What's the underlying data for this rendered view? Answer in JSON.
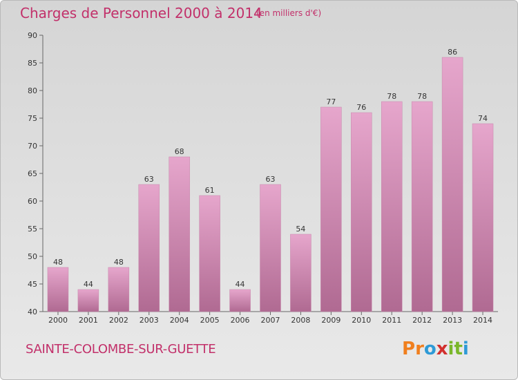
{
  "header": {
    "title": "Charges de Personnel 2000 à 2014",
    "subtitle": "(en milliers d'€)"
  },
  "footer": {
    "commune": "SAINTE-COLOMBE-SUR-GUETTE",
    "logo_letters": [
      "P",
      "r",
      "o",
      "x",
      "i",
      "t",
      "i"
    ],
    "logo_colors": [
      "#f07f1e",
      "#f07f1e",
      "#2e9ad6",
      "#d2302e",
      "#7ab72a",
      "#7ab72a",
      "#2e9ad6"
    ]
  },
  "colors": {
    "title": "#c2306a",
    "bar_top": "#e6a6cc",
    "bar_bottom": "#b06a92",
    "axis": "#666666"
  },
  "chart_data": {
    "type": "bar",
    "categories": [
      "2000",
      "2001",
      "2002",
      "2003",
      "2004",
      "2005",
      "2006",
      "2007",
      "2008",
      "2009",
      "2010",
      "2011",
      "2012",
      "2013",
      "2014"
    ],
    "values": [
      48,
      44,
      48,
      63,
      68,
      61,
      44,
      63,
      54,
      77,
      76,
      78,
      78,
      86,
      74
    ],
    "ylim": [
      40,
      90
    ],
    "yticks": [
      40,
      45,
      50,
      55,
      60,
      65,
      70,
      75,
      80,
      85,
      90
    ],
    "grid": false,
    "title": "Charges de Personnel 2000 à 2014",
    "xlabel": "",
    "ylabel": ""
  }
}
